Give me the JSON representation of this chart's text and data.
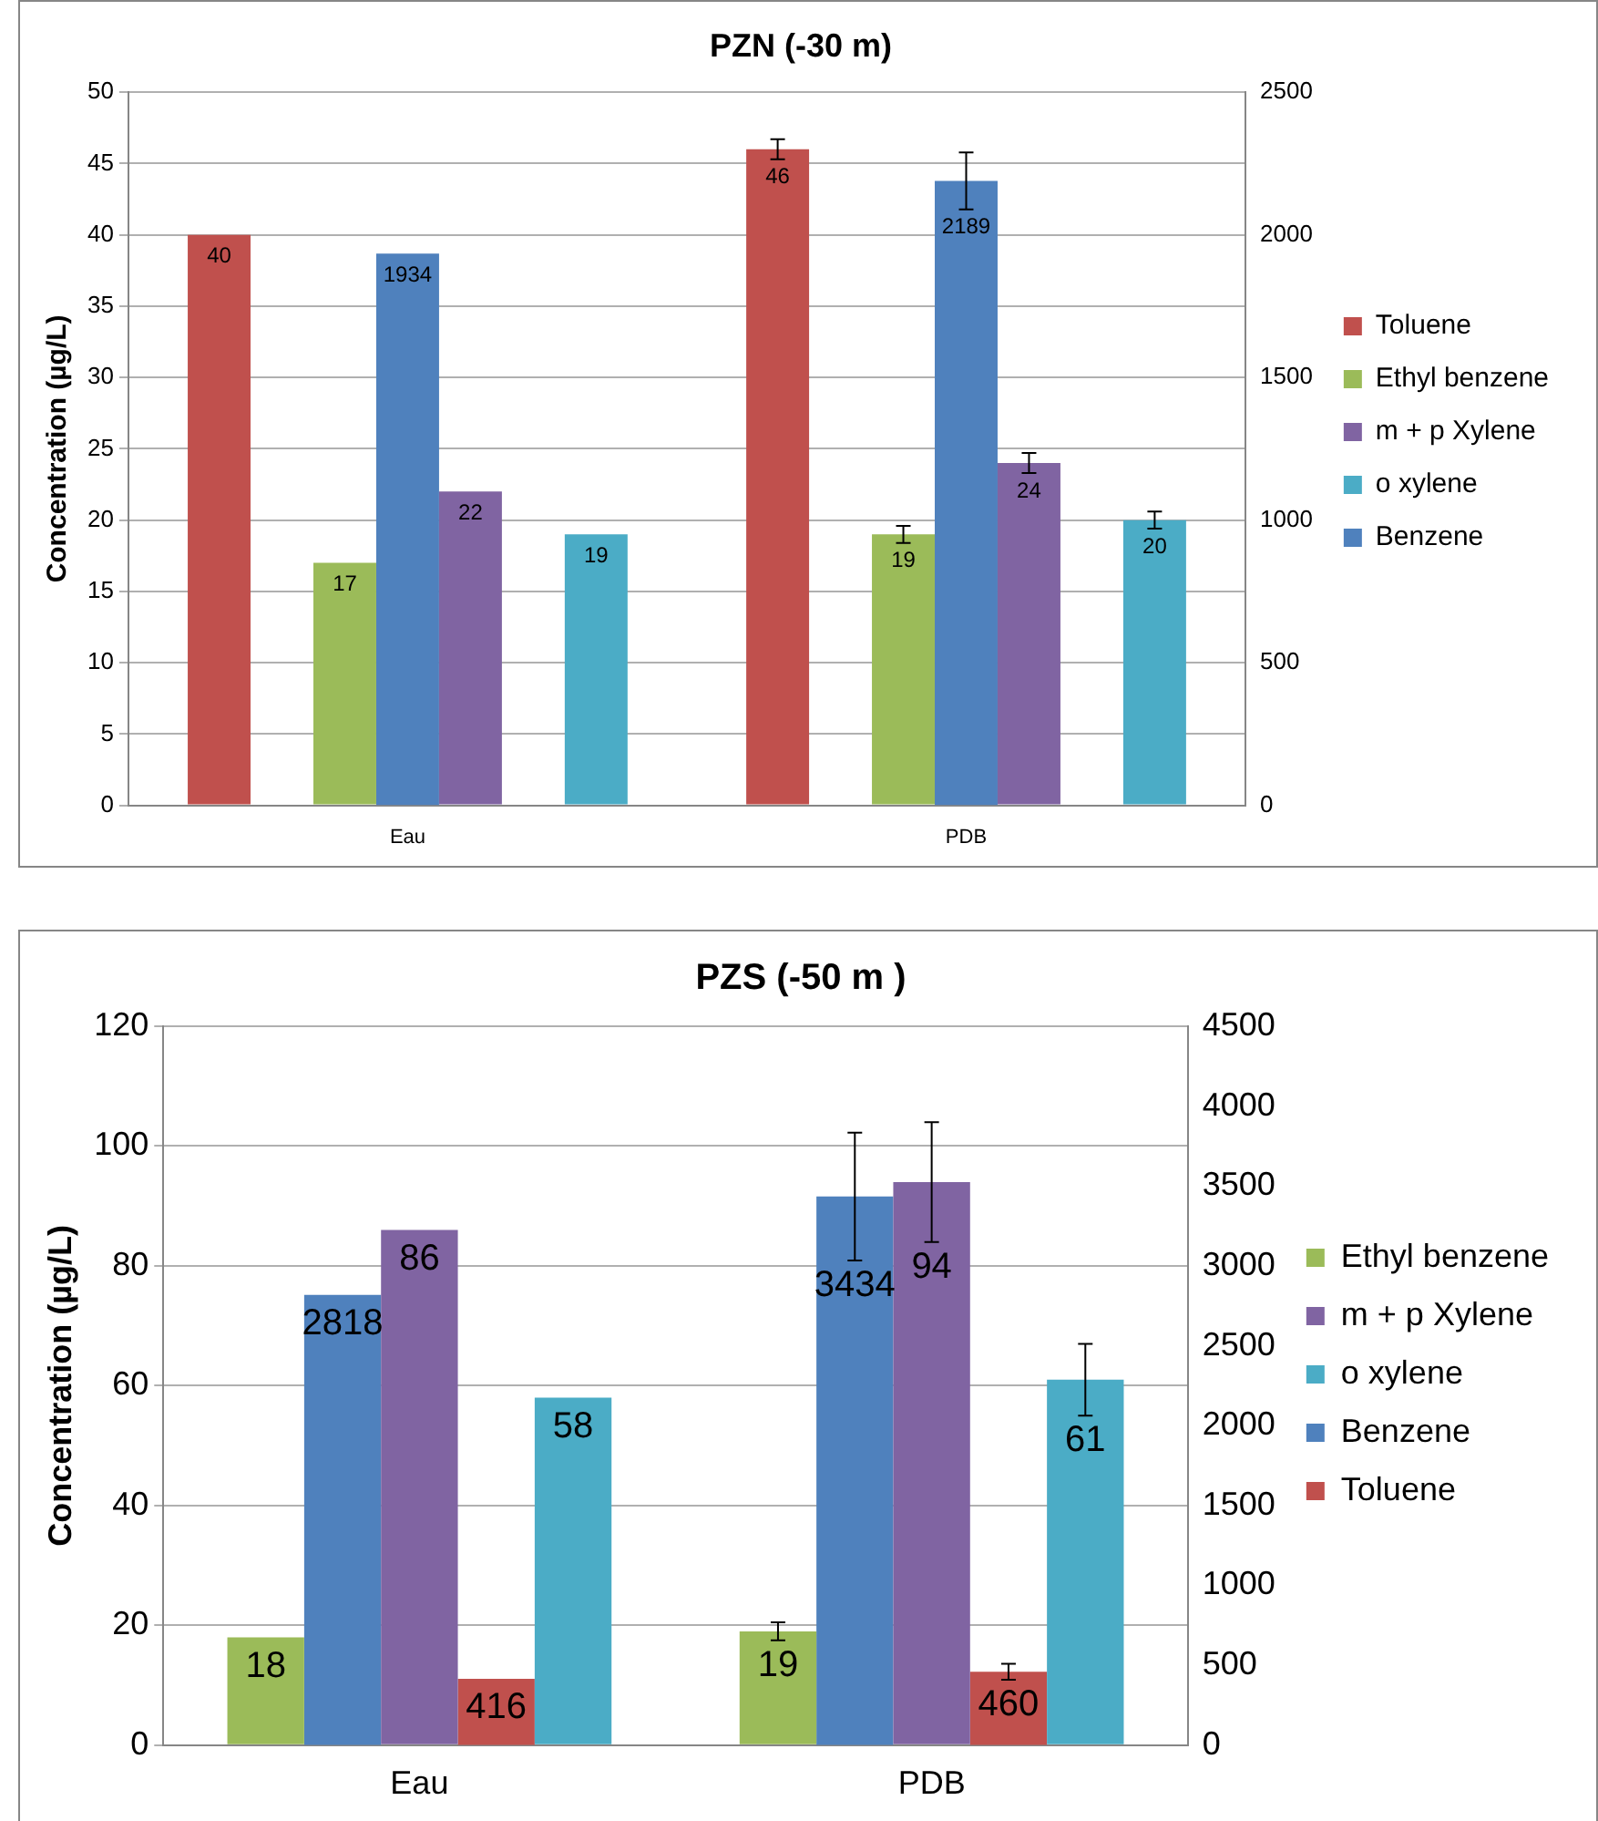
{
  "chart_data": [
    {
      "type": "bar",
      "title": "PZN (-30 m)",
      "ylabel": "Concentration (µg/L)",
      "categories": [
        "Eau",
        "PDB"
      ],
      "ylim": [
        0,
        50
      ],
      "yticks": [
        0,
        5,
        10,
        15,
        20,
        25,
        30,
        35,
        40,
        45,
        50
      ],
      "y2lim": [
        0,
        2500
      ],
      "y2ticks": [
        0,
        500,
        1000,
        1500,
        2000,
        2500
      ],
      "grid": "y",
      "legend": "right",
      "data_labels": true,
      "series": [
        {
          "name": "Toluene",
          "color": "#c0504d",
          "values": [
            40,
            46
          ],
          "errors": [
            null,
            0.7
          ]
        },
        {
          "name": "Ethyl benzene",
          "color": "#9bbb59",
          "values": [
            17,
            19
          ],
          "errors": [
            null,
            0.6
          ]
        },
        {
          "name": "m + p Xylene",
          "color": "#8064a2",
          "values": [
            22,
            24
          ],
          "errors": [
            null,
            0.7
          ]
        },
        {
          "name": "o xylene",
          "color": "#4bacc6",
          "values": [
            19,
            20
          ],
          "errors": [
            null,
            0.6
          ]
        },
        {
          "name": "Benzene",
          "color": "#4f81bd",
          "values": [
            1934,
            2189
          ],
          "errors": [
            null,
            100
          ],
          "axis": "y2"
        }
      ]
    },
    {
      "type": "bar",
      "title": "PZS (-50 m )",
      "ylabel": "Concentration (µg/L)",
      "categories": [
        "Eau",
        "PDB"
      ],
      "ylim": [
        0,
        120
      ],
      "yticks": [
        0,
        20,
        40,
        60,
        80,
        100,
        120
      ],
      "y2lim": [
        0,
        4500
      ],
      "y2ticks": [
        0,
        500,
        1000,
        1500,
        2000,
        2500,
        3000,
        3500,
        4000,
        4500
      ],
      "grid": "y",
      "legend": "right",
      "data_labels": true,
      "series": [
        {
          "name": "Ethyl benzene",
          "color": "#9bbb59",
          "values": [
            18,
            19
          ],
          "errors": [
            null,
            1.5
          ]
        },
        {
          "name": "m + p Xylene",
          "color": "#8064a2",
          "values": [
            86,
            94
          ],
          "errors": [
            null,
            10
          ]
        },
        {
          "name": "o xylene",
          "color": "#4bacc6",
          "values": [
            58,
            61
          ],
          "errors": [
            null,
            6
          ]
        },
        {
          "name": "Benzene",
          "color": "#4f81bd",
          "values": [
            2818,
            3434
          ],
          "errors": [
            null,
            400
          ],
          "axis": "y2"
        },
        {
          "name": "Toluene",
          "color": "#c0504d",
          "values": [
            416,
            460
          ],
          "errors": [
            null,
            50
          ],
          "axis": "y2"
        }
      ]
    }
  ]
}
